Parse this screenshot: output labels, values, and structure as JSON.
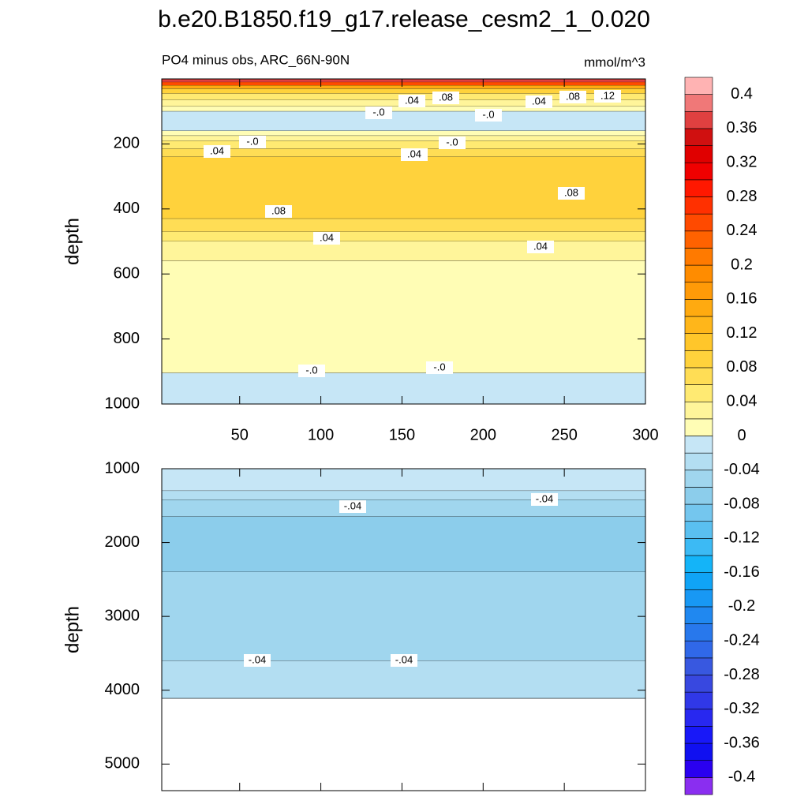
{
  "chart_data": {
    "type": "contour",
    "title": "b.e20.B1850.f19_g17.release_cesm2_1_0.020",
    "subtitle_left": "PO4 minus obs, ARC_66N-90N",
    "subtitle_right": "mmol/m^3",
    "colorbar": {
      "levels": [
        -0.4,
        -0.38,
        -0.36,
        -0.34,
        -0.32,
        -0.3,
        -0.28,
        -0.26,
        -0.24,
        -0.22,
        -0.2,
        -0.18,
        -0.16,
        -0.14,
        -0.12,
        -0.1,
        -0.08,
        -0.06,
        -0.04,
        -0.02,
        0,
        0.02,
        0.04,
        0.06,
        0.08,
        0.1,
        0.12,
        0.14,
        0.16,
        0.18,
        0.2,
        0.22,
        0.24,
        0.26,
        0.28,
        0.3,
        0.32,
        0.34,
        0.36,
        0.38,
        0.4
      ],
      "colors": [
        "#8a2ef0",
        "#2a00f0",
        "#1010f0",
        "#1818f8",
        "#2828f0",
        "#3038e8",
        "#3848e0",
        "#3858e0",
        "#3068e8",
        "#2878ec",
        "#2088f0",
        "#1898f4",
        "#10a4f6",
        "#14b4f8",
        "#3cbaf4",
        "#5ac0f0",
        "#74c6ee",
        "#8ccdeb",
        "#a0d6ee",
        "#b3def2",
        "#c6e6f6",
        "#fffdb5",
        "#fff59a",
        "#ffea72",
        "#ffdd55",
        "#ffd23c",
        "#ffc62a",
        "#ffb61a",
        "#ffaa10",
        "#ff9a08",
        "#ff8c00",
        "#ff7a00",
        "#ff6200",
        "#ff4a00",
        "#ff3000",
        "#ff1800",
        "#f00000",
        "#e00000",
        "#d01010",
        "#e04040",
        "#f07878",
        "#ffb3b3"
      ],
      "ticks": [
        -0.4,
        -0.36,
        -0.32,
        -0.28,
        -0.24,
        -0.2,
        -0.16,
        -0.12,
        -0.08,
        -0.04,
        0,
        0.04,
        0.08,
        0.12,
        0.16,
        0.2,
        0.24,
        0.28,
        0.32,
        0.36,
        0.4
      ]
    },
    "panels": [
      {
        "ylabel": "depth",
        "xlim": [
          2,
          300
        ],
        "ylim": [
          0,
          1000
        ],
        "xticks": [
          50,
          100,
          150,
          200,
          250,
          300
        ],
        "yticks": [
          200,
          400,
          600,
          800,
          1000
        ],
        "layers": [
          {
            "from": 0,
            "to": 10,
            "value": 0.37
          },
          {
            "from": 10,
            "to": 20,
            "value": 0.25
          },
          {
            "from": 20,
            "to": 30,
            "value": 0.15
          },
          {
            "from": 30,
            "to": 45,
            "value": 0.09
          },
          {
            "from": 45,
            "to": 65,
            "value": 0.05
          },
          {
            "from": 65,
            "to": 85,
            "value": 0.03
          },
          {
            "from": 85,
            "to": 100,
            "value": 0.01
          },
          {
            "from": 100,
            "to": 160,
            "value": -0.01
          },
          {
            "from": 160,
            "to": 175,
            "value": 0.01
          },
          {
            "from": 175,
            "to": 190,
            "value": 0.03
          },
          {
            "from": 190,
            "to": 215,
            "value": 0.05
          },
          {
            "from": 215,
            "to": 240,
            "value": 0.07
          },
          {
            "from": 240,
            "to": 430,
            "value": 0.09
          },
          {
            "from": 430,
            "to": 470,
            "value": 0.07
          },
          {
            "from": 470,
            "to": 500,
            "value": 0.05
          },
          {
            "from": 500,
            "to": 560,
            "value": 0.03
          },
          {
            "from": 560,
            "to": 905,
            "value": 0.01
          },
          {
            "from": 905,
            "to": 1000,
            "value": -0.01
          }
        ],
        "contour_labels": [
          "-.0",
          ".04",
          ".08",
          "-.0",
          ".04",
          ".08",
          ".12",
          ".04",
          "-.0",
          ".04",
          "-.0",
          ".08",
          ".08",
          ".04",
          ".04",
          "-.0",
          "-.0"
        ]
      },
      {
        "ylabel": "depth",
        "xlim": [
          2,
          300
        ],
        "ylim": [
          1000,
          5360
        ],
        "xticks": [
          50,
          100,
          150,
          200,
          250,
          300
        ],
        "yticks": [
          1000,
          2000,
          3000,
          4000,
          5000
        ],
        "layers": [
          {
            "from": 1000,
            "to": 1300,
            "value": -0.01
          },
          {
            "from": 1300,
            "to": 1420,
            "value": -0.03
          },
          {
            "from": 1420,
            "to": 1650,
            "value": -0.05
          },
          {
            "from": 1650,
            "to": 2400,
            "value": -0.07
          },
          {
            "from": 2400,
            "to": 3600,
            "value": -0.05
          },
          {
            "from": 3600,
            "to": 4110,
            "value": -0.03
          }
        ],
        "contour_labels": [
          "-.04",
          "-.04",
          "-.04",
          "-.04"
        ]
      }
    ]
  }
}
